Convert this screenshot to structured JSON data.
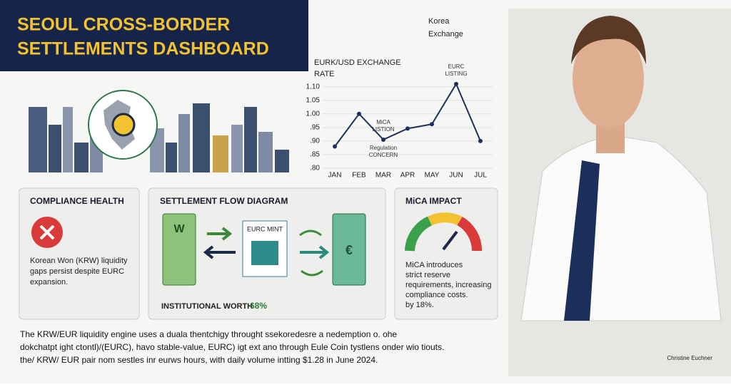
{
  "header": {
    "title_lines": [
      "SEOUL CROSS-BORDER",
      "SETTLEMENTS DASHBOARD"
    ]
  },
  "exchange_label_lines": [
    "Korea",
    "Exchange"
  ],
  "rate_chart": {
    "type": "line",
    "title_lines": [
      "EURK/USD EXCHANGE",
      "RATE"
    ],
    "categories": [
      "JAN",
      "FEB",
      "MAR",
      "APR",
      "MAY",
      "JUN",
      "JUL"
    ],
    "values": [
      0.88,
      1.0,
      0.905,
      0.946,
      0.962,
      1.11,
      0.9
    ],
    "color": "#1f2f5c",
    "ylim": [
      0.8,
      1.12
    ],
    "yticks": [
      {
        "value": 1.1,
        "label": "1.10"
      },
      {
        "value": 1.05,
        "label": "1.05"
      },
      {
        "value": 1.0,
        "label": "1.00"
      },
      {
        "value": 0.95,
        "label": ".95"
      },
      {
        "value": 0.9,
        "label": ".90"
      },
      {
        "value": 0.85,
        "label": ".85"
      },
      {
        "value": 0.8,
        "label": ".80"
      }
    ],
    "grid": true,
    "annotations": [
      {
        "lines": [
          "MiCA",
          "LISTION"
        ],
        "at": 2
      },
      {
        "lines": [
          "EURC",
          "LISTING"
        ],
        "at": 5
      },
      {
        "lines": [
          "Regulation",
          "CONCERN"
        ],
        "at": 2
      }
    ]
  },
  "compliance": {
    "title": "COMPLIANCE HEALTH",
    "lines": [
      "Korean Won (KRW) liquidity",
      "gaps persist despite EURC",
      "expansion."
    ]
  },
  "flow": {
    "title": "SETTLEMENT FLOW DIAGRAM",
    "mint": "EURC MINT",
    "won_symbol": "W",
    "euro_symbol": "€",
    "worth_label": "INSTITUTIONAL WORTH",
    "worth_value": "68%"
  },
  "mica": {
    "title": "MiCA IMPACT",
    "lines": [
      "MiCA introduces",
      "strict reserve",
      "requirements, increasing",
      "compliance costs.",
      "by 18%."
    ]
  },
  "footer": {
    "lines": [
      "The KRW/EUR liquidity engine uses a duala thentchigy throught ssekoredesre a nedemption o. ohe",
      "dokchatpt ight ctontl)/(EURC), havo stable-value, EURC) igt ext ano through Eule Coin tystlens onder wio tiouts.",
      "the/ KRW/ EUR pair nom sestles inr eurws hours, with daily volume intting $1.28 in June 2024."
    ]
  },
  "photo": {
    "caption": "Christine Euchner"
  }
}
